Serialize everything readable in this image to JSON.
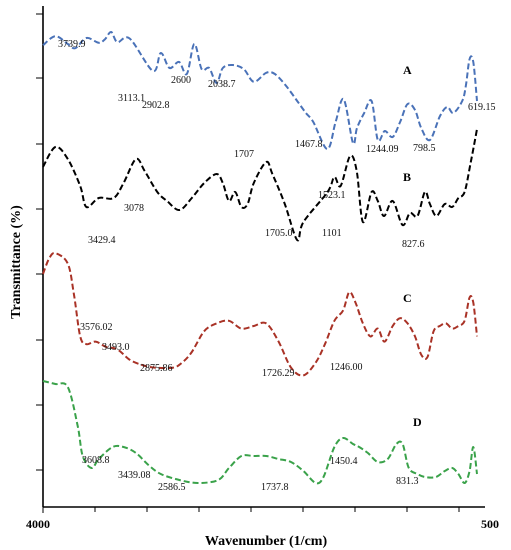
{
  "chart_data": {
    "type": "line",
    "xlabel": "Wavenumber (1/cm)",
    "ylabel": "Transmittance (%)",
    "xlim": [
      4000,
      500
    ],
    "x_ticks": [
      "4000",
      "500"
    ],
    "grid": false,
    "series": [
      {
        "name": "A",
        "color": "#4a72b8",
        "points": [
          [
            4000,
            0.58
          ],
          [
            3900,
            0.73
          ],
          [
            3800,
            0.6
          ],
          [
            3739.9,
            0.53
          ],
          [
            3650,
            0.7
          ],
          [
            3550,
            0.62
          ],
          [
            3500,
            0.68
          ],
          [
            3450,
            0.8
          ],
          [
            3400,
            0.63
          ],
          [
            3300,
            0.69
          ],
          [
            3113.1,
            0.15
          ],
          [
            3050,
            0.45
          ],
          [
            2980,
            0.2
          ],
          [
            2902.8,
            0.3
          ],
          [
            2840,
            0.1
          ],
          [
            2780,
            0.6
          ],
          [
            2720,
            0.18
          ],
          [
            2660,
            0.2
          ],
          [
            2600,
            -0.05
          ],
          [
            2550,
            0.2
          ],
          [
            2470,
            0.25
          ],
          [
            2380,
            0.18
          ],
          [
            2300,
            -0.03
          ],
          [
            2200,
            0.12
          ],
          [
            2130,
            0.1
          ],
          [
            2038.7,
            -0.1
          ],
          [
            1950,
            -0.35
          ],
          [
            1880,
            -0.55
          ],
          [
            1820,
            -0.7
          ],
          [
            1707,
            -1.15
          ],
          [
            1640,
            -0.7
          ],
          [
            1575,
            -0.32
          ],
          [
            1500,
            -1.05
          ],
          [
            1467.8,
            -0.8
          ],
          [
            1410,
            -0.55
          ],
          [
            1350,
            -0.35
          ],
          [
            1300,
            -1.0
          ],
          [
            1244.09,
            -0.85
          ],
          [
            1180,
            -0.95
          ],
          [
            1120,
            -0.7
          ],
          [
            1060,
            -0.4
          ],
          [
            1000,
            -0.5
          ],
          [
            950,
            -0.8
          ],
          [
            880,
            -1.0
          ],
          [
            798.5,
            -0.6
          ],
          [
            740,
            -0.45
          ],
          [
            690,
            -0.55
          ],
          [
            619.15,
            -0.35
          ],
          [
            590,
            -0.1
          ],
          [
            560,
            0.35
          ],
          [
            530,
            0.3
          ],
          [
            500,
            -0.35
          ]
        ],
        "peak_labels": [
          "3739.9",
          "3113.1",
          "2902.8",
          "2600",
          "2038.7",
          "1707",
          "1467.8",
          "1244.09",
          "798.5",
          "619.15"
        ]
      },
      {
        "name": "B",
        "color": "#000000",
        "points": [
          [
            4000,
            0.22
          ],
          [
            3900,
            0.55
          ],
          [
            3800,
            0.35
          ],
          [
            3700,
            -0.1
          ],
          [
            3650,
            -0.45
          ],
          [
            3550,
            -0.3
          ],
          [
            3429.4,
            -0.3
          ],
          [
            3350,
            -0.05
          ],
          [
            3250,
            0.35
          ],
          [
            3180,
            0.15
          ],
          [
            3078,
            -0.2
          ],
          [
            3000,
            -0.35
          ],
          [
            2900,
            -0.5
          ],
          [
            2800,
            -0.3
          ],
          [
            2700,
            -0.05
          ],
          [
            2600,
            0.1
          ],
          [
            2550,
            -0.05
          ],
          [
            2500,
            -0.35
          ],
          [
            2450,
            -0.2
          ],
          [
            2400,
            -0.45
          ],
          [
            2350,
            -0.4
          ],
          [
            2300,
            -0.05
          ],
          [
            2200,
            0.3
          ],
          [
            2150,
            0.1
          ],
          [
            2050,
            -0.4
          ],
          [
            1950,
            -1.0
          ],
          [
            1900,
            -0.7
          ],
          [
            1705,
            -0.2
          ],
          [
            1650,
            0.05
          ],
          [
            1600,
            -0.1
          ],
          [
            1523.1,
            0.4
          ],
          [
            1470,
            0.15
          ],
          [
            1420,
            -0.7
          ],
          [
            1350,
            -0.2
          ],
          [
            1300,
            -0.35
          ],
          [
            1250,
            -0.6
          ],
          [
            1180,
            -0.35
          ],
          [
            1101,
            -0.75
          ],
          [
            1040,
            -0.55
          ],
          [
            980,
            -0.6
          ],
          [
            920,
            -0.2
          ],
          [
            880,
            -0.4
          ],
          [
            827.6,
            -0.6
          ],
          [
            760,
            -0.4
          ],
          [
            700,
            -0.45
          ],
          [
            650,
            -0.3
          ],
          [
            600,
            -0.2
          ],
          [
            550,
            0.3
          ],
          [
            500,
            0.85
          ]
        ],
        "peak_labels": [
          "3429.4",
          "3078",
          "1705.0",
          "1523.1",
          "1101",
          "827.6"
        ]
      },
      {
        "name": "C",
        "color": "#a93226",
        "points": [
          [
            4000,
            0.5
          ],
          [
            3950,
            0.8
          ],
          [
            3900,
            0.9
          ],
          [
            3800,
            0.7
          ],
          [
            3750,
            0.1
          ],
          [
            3700,
            -0.7
          ],
          [
            3650,
            -0.85
          ],
          [
            3576.02,
            -0.8
          ],
          [
            3493.0,
            -0.9
          ],
          [
            3400,
            -0.95
          ],
          [
            3300,
            -1.15
          ],
          [
            3200,
            -1.25
          ],
          [
            3100,
            -1.3
          ],
          [
            2950,
            -1.3
          ],
          [
            2875.86,
            -1.2
          ],
          [
            2800,
            -1.0
          ],
          [
            2700,
            -0.6
          ],
          [
            2600,
            -0.45
          ],
          [
            2500,
            -0.4
          ],
          [
            2400,
            -0.55
          ],
          [
            2300,
            -0.5
          ],
          [
            2200,
            -0.45
          ],
          [
            2100,
            -0.8
          ],
          [
            2000,
            -1.3
          ],
          [
            1900,
            -1.45
          ],
          [
            1800,
            -1.2
          ],
          [
            1726.29,
            -0.85
          ],
          [
            1650,
            -0.4
          ],
          [
            1580,
            -0.2
          ],
          [
            1530,
            0.15
          ],
          [
            1480,
            -0.05
          ],
          [
            1420,
            -0.45
          ],
          [
            1360,
            -0.7
          ],
          [
            1300,
            -0.55
          ],
          [
            1246.0,
            -0.8
          ],
          [
            1180,
            -0.5
          ],
          [
            1120,
            -0.35
          ],
          [
            1060,
            -0.45
          ],
          [
            1000,
            -0.7
          ],
          [
            950,
            -1.05
          ],
          [
            900,
            -1.1
          ],
          [
            850,
            -0.6
          ],
          [
            800,
            -0.5
          ],
          [
            750,
            -0.45
          ],
          [
            700,
            -0.55
          ],
          [
            650,
            -0.5
          ],
          [
            600,
            -0.4
          ],
          [
            560,
            0.05
          ],
          [
            530,
            -0.05
          ],
          [
            500,
            -0.7
          ]
        ],
        "peak_labels": [
          "3576.02",
          "3493.0",
          "2875.86",
          "1726.29",
          "1246.00"
        ]
      },
      {
        "name": "D",
        "color": "#3aa24a",
        "points": [
          [
            4000,
            0.15
          ],
          [
            3900,
            0.1
          ],
          [
            3800,
            0.05
          ],
          [
            3720,
            -0.6
          ],
          [
            3680,
            -1.1
          ],
          [
            3608.8,
            -1.3
          ],
          [
            3550,
            -1.15
          ],
          [
            3439.08,
            -0.95
          ],
          [
            3350,
            -0.95
          ],
          [
            3250,
            -1.05
          ],
          [
            3150,
            -1.25
          ],
          [
            3050,
            -1.4
          ],
          [
            2900,
            -1.5
          ],
          [
            2750,
            -1.55
          ],
          [
            2586.5,
            -1.5
          ],
          [
            2500,
            -1.3
          ],
          [
            2400,
            -1.1
          ],
          [
            2300,
            -1.1
          ],
          [
            2200,
            -1.1
          ],
          [
            2100,
            -1.15
          ],
          [
            2000,
            -1.2
          ],
          [
            1900,
            -1.35
          ],
          [
            1800,
            -1.55
          ],
          [
            1737.8,
            -1.45
          ],
          [
            1650,
            -0.95
          ],
          [
            1580,
            -0.8
          ],
          [
            1500,
            -0.9
          ],
          [
            1450.4,
            -0.95
          ],
          [
            1380,
            -1.05
          ],
          [
            1300,
            -1.2
          ],
          [
            1220,
            -1.15
          ],
          [
            1150,
            -0.9
          ],
          [
            1100,
            -0.9
          ],
          [
            1050,
            -1.3
          ],
          [
            980,
            -1.4
          ],
          [
            920,
            -1.45
          ],
          [
            831.3,
            -1.45
          ],
          [
            760,
            -1.35
          ],
          [
            700,
            -1.3
          ],
          [
            650,
            -1.4
          ],
          [
            600,
            -1.55
          ],
          [
            560,
            -1.35
          ],
          [
            530,
            -0.95
          ],
          [
            500,
            -1.4
          ]
        ],
        "peak_labels": [
          "3608.8",
          "3439.08",
          "2586.5",
          "1737.8",
          "1450.4",
          "831.3"
        ]
      }
    ]
  }
}
